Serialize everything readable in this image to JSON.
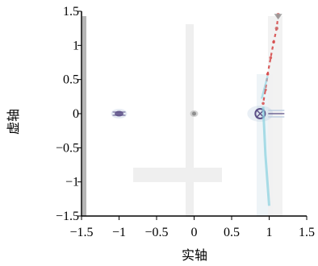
{
  "chart_data": {
    "type": "scatter",
    "title": "",
    "xlabel": "实轴",
    "ylabel": "虚轴",
    "xlim": [
      -1.5,
      1.5
    ],
    "ylim": [
      -1.5,
      1.5
    ],
    "x_ticks": [
      "−1.5",
      "−1",
      "−0.5",
      "0",
      "0.5",
      "1",
      "1.5"
    ],
    "y_ticks": [
      "1.5",
      "1",
      "0.5",
      "0",
      "−0.5",
      "−1",
      "−1.5"
    ],
    "grid": false,
    "legend": "none",
    "colors": {
      "background": "#ffffff",
      "axis": "#000000",
      "pale_band": "#eeeeee",
      "pole_dark": "#5b4f86",
      "pole_light": "#b7c9df",
      "trail_red": "#d64b4b",
      "trail_cyan": "#8ed3e0"
    },
    "series": [
      {
        "values": [
          {
            "x": -1,
            "y": 0
          },
          {
            "x": 0,
            "y": 0
          },
          {
            "x": 0.88,
            "y": 0
          },
          {
            "x": 1.12,
            "y": 1.45
          },
          {
            "x": 1.1,
            "y": 1.25
          },
          {
            "x": 1.06,
            "y": 1.05
          },
          {
            "x": 1.02,
            "y": 0.82
          },
          {
            "x": 0.98,
            "y": 0.58
          },
          {
            "x": 0.95,
            "y": 0.35
          },
          {
            "x": 0.92,
            "y": 0.15
          }
        ]
      }
    ]
  }
}
